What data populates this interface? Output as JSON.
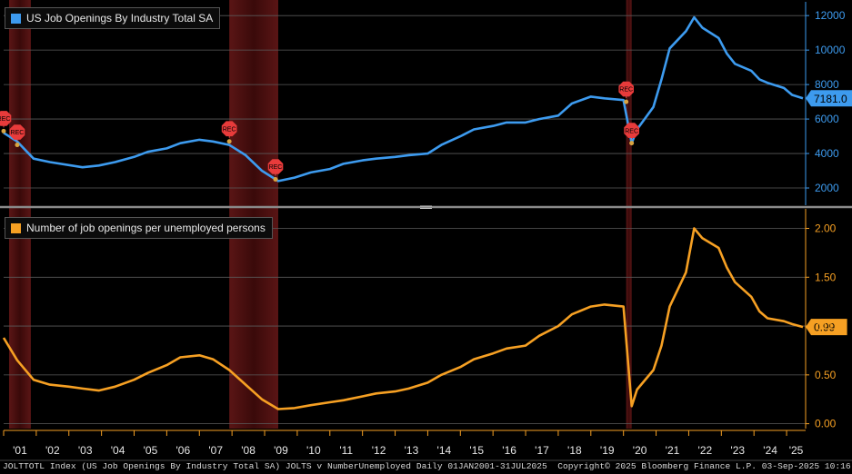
{
  "chart_data": [
    {
      "type": "line",
      "legend": "US Job Openings By Industry Total SA",
      "color": "#3d9bef",
      "ylim": [
        1000,
        12800
      ],
      "yticks": [
        2000,
        4000,
        6000,
        8000,
        10000,
        12000
      ],
      "ytick_labels": [
        "2000",
        "4000",
        "6000",
        "8000",
        "10000",
        "12000"
      ],
      "last_value_label": "7181.0",
      "recession_marker_label": "REC",
      "recession_markers": [
        {
          "x": "2001-01",
          "y": 5300
        },
        {
          "x": "2001-06",
          "y": 4500
        },
        {
          "x": "2007-12",
          "y": 4700
        },
        {
          "x": "2009-05",
          "y": 2500
        },
        {
          "x": "2020-02",
          "y": 7000
        },
        {
          "x": "2020-04",
          "y": 4600
        }
      ],
      "series": [
        {
          "x": [
            "2001-01",
            "2001-06",
            "2001-12",
            "2002-06",
            "2003-06",
            "2003-12",
            "2004-06",
            "2005-01",
            "2005-06",
            "2006-01",
            "2006-06",
            "2007-01",
            "2007-06",
            "2007-12",
            "2008-06",
            "2008-12",
            "2009-06",
            "2009-12",
            "2010-06",
            "2011-01",
            "2011-06",
            "2012-01",
            "2012-06",
            "2013-01",
            "2013-06",
            "2014-01",
            "2014-06",
            "2015-01",
            "2015-06",
            "2016-01",
            "2016-06",
            "2017-01",
            "2017-06",
            "2018-01",
            "2018-06",
            "2019-01",
            "2019-06",
            "2020-01",
            "2020-04",
            "2020-06",
            "2020-12",
            "2021-03",
            "2021-06",
            "2021-12",
            "2022-03",
            "2022-06",
            "2022-12",
            "2023-03",
            "2023-06",
            "2023-12",
            "2024-03",
            "2024-06",
            "2024-12",
            "2025-03",
            "2025-07"
          ],
          "y": [
            5200,
            4700,
            3700,
            3500,
            3200,
            3300,
            3500,
            3800,
            4100,
            4300,
            4600,
            4800,
            4700,
            4500,
            3900,
            3000,
            2400,
            2600,
            2900,
            3100,
            3400,
            3600,
            3700,
            3800,
            3900,
            4000,
            4500,
            5000,
            5400,
            5600,
            5800,
            5800,
            6000,
            6200,
            6900,
            7300,
            7200,
            7100,
            4600,
            5400,
            6700,
            8300,
            10100,
            11100,
            11900,
            11300,
            10700,
            9800,
            9200,
            8800,
            8300,
            8100,
            7800,
            7400,
            7200
          ]
        }
      ]
    },
    {
      "type": "line",
      "legend": "Number of job openings per unemployed persons",
      "color": "#f6a023",
      "ylim": [
        -0.05,
        2.2
      ],
      "yticks": [
        0,
        0.5,
        1.0,
        1.5,
        2.0
      ],
      "ytick_labels": [
        "0.00",
        "0.50",
        "1.00",
        "1.50",
        "2.00"
      ],
      "last_value_label": "0.99",
      "series": [
        {
          "x": [
            "2001-01",
            "2001-06",
            "2001-12",
            "2002-06",
            "2003-01",
            "2003-06",
            "2003-12",
            "2004-06",
            "2005-01",
            "2005-06",
            "2006-01",
            "2006-06",
            "2007-01",
            "2007-06",
            "2007-12",
            "2008-06",
            "2008-12",
            "2009-06",
            "2009-12",
            "2010-06",
            "2011-01",
            "2011-06",
            "2012-01",
            "2012-06",
            "2013-01",
            "2013-06",
            "2014-01",
            "2014-06",
            "2015-01",
            "2015-06",
            "2016-01",
            "2016-06",
            "2017-01",
            "2017-06",
            "2018-01",
            "2018-06",
            "2019-01",
            "2019-06",
            "2020-01",
            "2020-04",
            "2020-06",
            "2020-12",
            "2021-03",
            "2021-06",
            "2021-12",
            "2022-03",
            "2022-06",
            "2022-12",
            "2023-03",
            "2023-06",
            "2023-12",
            "2024-03",
            "2024-06",
            "2024-12",
            "2025-03",
            "2025-07"
          ],
          "y": [
            0.88,
            0.65,
            0.45,
            0.4,
            0.38,
            0.36,
            0.34,
            0.38,
            0.45,
            0.52,
            0.6,
            0.68,
            0.7,
            0.66,
            0.55,
            0.4,
            0.25,
            0.15,
            0.16,
            0.19,
            0.22,
            0.24,
            0.28,
            0.31,
            0.33,
            0.36,
            0.42,
            0.5,
            0.58,
            0.66,
            0.72,
            0.77,
            0.8,
            0.9,
            1.0,
            1.12,
            1.2,
            1.22,
            1.2,
            0.18,
            0.35,
            0.55,
            0.8,
            1.2,
            1.55,
            2.0,
            1.9,
            1.8,
            1.6,
            1.45,
            1.3,
            1.15,
            1.08,
            1.05,
            1.02,
            0.99
          ]
        }
      ]
    }
  ],
  "recession_periods": [
    {
      "start": "2001-03",
      "end": "2001-11"
    },
    {
      "start": "2007-12",
      "end": "2009-06"
    },
    {
      "start": "2020-02",
      "end": "2020-04"
    }
  ],
  "x_axis": {
    "start": "2001-01",
    "end": "2025-07",
    "ticks": [
      "2001-01",
      "2002-01",
      "2003-01",
      "2004-01",
      "2005-01",
      "2006-01",
      "2007-01",
      "2008-01",
      "2009-01",
      "2010-01",
      "2011-01",
      "2012-01",
      "2013-01",
      "2014-01",
      "2015-01",
      "2016-01",
      "2017-01",
      "2018-01",
      "2019-01",
      "2020-01",
      "2021-01",
      "2022-01",
      "2023-01",
      "2024-01",
      "2025-01"
    ],
    "tick_labels": [
      "'01",
      "'02",
      "'03",
      "'04",
      "'05",
      "'06",
      "'07",
      "'08",
      "'09",
      "'10",
      "'11",
      "'12",
      "'13",
      "'14",
      "'15",
      "'16",
      "'17",
      "'18",
      "'19",
      "'20",
      "'21",
      "'22",
      "'23",
      "'24",
      "'25"
    ]
  },
  "footer": {
    "left": "JOLTTOTL Index (US Job Openings By Industry Total SA) JOLTS v NumberUnemployed  Daily 01JAN2001-31JUL2025",
    "right": "Copyright© 2025 Bloomberg Finance L.P.   03-Sep-2025 10:16:36"
  }
}
